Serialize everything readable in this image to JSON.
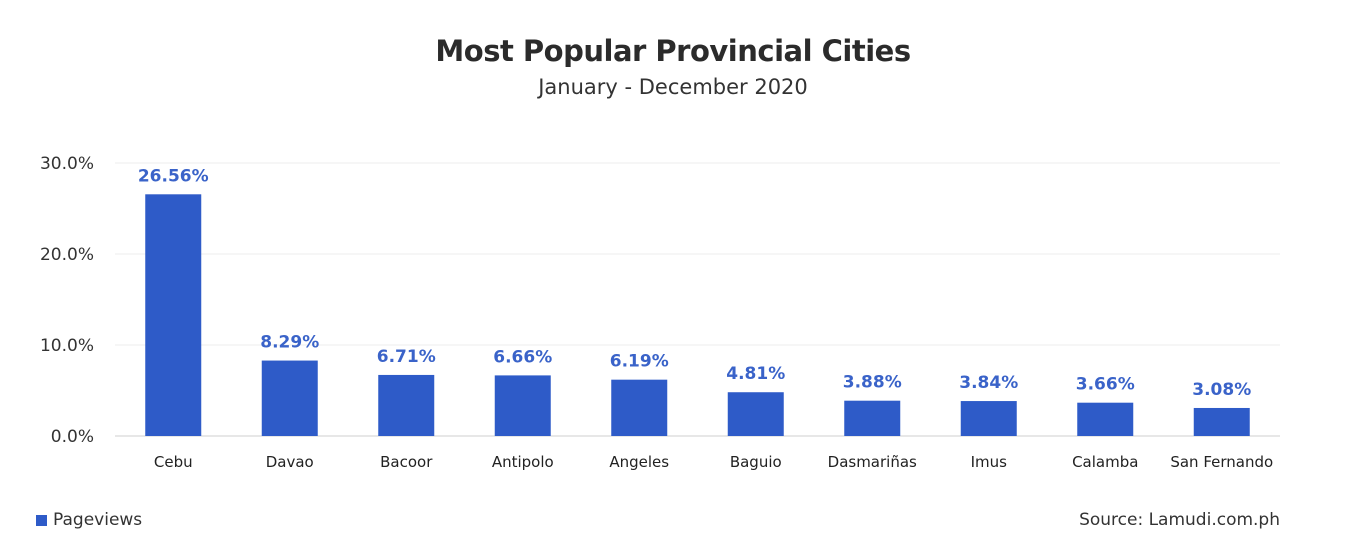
{
  "title": "Most Popular Provincial Cities",
  "subtitle": "January - December 2020",
  "source": "Source: Lamudi.com.ph",
  "colors": {
    "bar": "#2e5bc8",
    "label": "#3a63c9",
    "grid": "#ececec",
    "axis": "#cfcfcf"
  },
  "chart_data": {
    "type": "bar",
    "title": "Most Popular Provincial Cities",
    "subtitle": "January - December 2020",
    "categories": [
      "Cebu",
      "Davao",
      "Bacoor",
      "Antipolo",
      "Angeles",
      "Baguio",
      "Dasmariñas",
      "Imus",
      "Calamba",
      "San Fernando"
    ],
    "series": [
      {
        "name": "Pageviews",
        "values": [
          26.56,
          8.29,
          6.71,
          6.66,
          6.19,
          4.81,
          3.88,
          3.84,
          3.66,
          3.08
        ],
        "labels": [
          "26.56%",
          "8.29%",
          "6.71%",
          "6.66%",
          "6.19%",
          "4.81%",
          "3.88%",
          "3.84%",
          "3.66%",
          "3.08%"
        ]
      }
    ],
    "yticks": [
      "0.0%",
      "10.0%",
      "20.0%",
      "30.0%"
    ],
    "ylim": [
      0,
      30
    ],
    "xlabel": "",
    "ylabel": "",
    "grid": true,
    "legend_position": "bottom-left"
  }
}
